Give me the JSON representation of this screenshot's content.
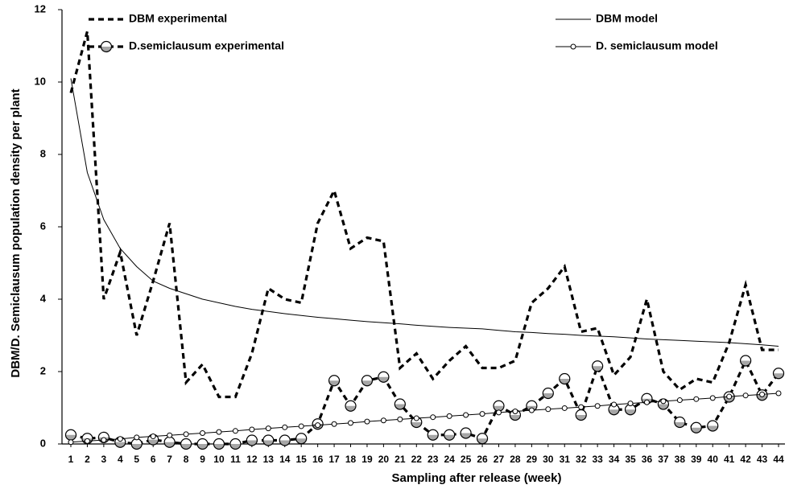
{
  "chart_data": {
    "type": "line",
    "x_label": "Sampling after release (week)",
    "y_label": "DBM/D. Semiclausum population density per plant",
    "categories": [
      1,
      2,
      3,
      4,
      5,
      6,
      7,
      8,
      9,
      10,
      11,
      12,
      13,
      14,
      15,
      16,
      17,
      18,
      19,
      20,
      21,
      22,
      23,
      24,
      25,
      26,
      27,
      28,
      29,
      30,
      31,
      32,
      33,
      34,
      35,
      36,
      37,
      38,
      39,
      40,
      41,
      42,
      43,
      44
    ],
    "ylim": [
      0,
      12
    ],
    "yticks": [
      0,
      2,
      4,
      6,
      8,
      10,
      12
    ],
    "series": [
      {
        "name": "DBM experimental",
        "color": "#000000",
        "line_style": "dashed",
        "marker": "none",
        "values": [
          9.7,
          11.4,
          4.0,
          5.3,
          3.0,
          4.5,
          6.1,
          1.7,
          2.2,
          1.3,
          1.3,
          2.5,
          4.3,
          4.0,
          3.9,
          6.1,
          7.0,
          5.4,
          5.7,
          5.6,
          2.1,
          2.5,
          1.8,
          2.3,
          2.7,
          2.1,
          2.1,
          2.3,
          3.9,
          4.3,
          4.9,
          3.1,
          3.2,
          1.9,
          2.4,
          4.0,
          2.0,
          1.5,
          1.8,
          1.7,
          2.8,
          4.4,
          2.6,
          2.6
        ]
      },
      {
        "name": "DBM model",
        "color": "#000000",
        "line_style": "solid",
        "marker": "none",
        "values": [
          10.1,
          7.5,
          6.2,
          5.4,
          4.9,
          4.5,
          4.3,
          4.15,
          4.0,
          3.9,
          3.8,
          3.72,
          3.66,
          3.6,
          3.55,
          3.5,
          3.46,
          3.42,
          3.38,
          3.35,
          3.32,
          3.28,
          3.25,
          3.22,
          3.2,
          3.18,
          3.14,
          3.1,
          3.08,
          3.05,
          3.03,
          3.0,
          2.98,
          2.96,
          2.93,
          2.9,
          2.88,
          2.86,
          2.84,
          2.82,
          2.8,
          2.77,
          2.74,
          2.7
        ]
      },
      {
        "name": "D.semiclausum experimental",
        "color": "#000000",
        "line_style": "dashed",
        "marker": "large-circle",
        "values": [
          0.25,
          0.15,
          0.18,
          0.05,
          0.0,
          0.12,
          0.05,
          0.0,
          0.0,
          0.0,
          0.0,
          0.1,
          0.1,
          0.1,
          0.15,
          0.55,
          1.75,
          1.05,
          1.75,
          1.85,
          1.1,
          0.6,
          0.25,
          0.25,
          0.3,
          0.15,
          1.05,
          0.8,
          1.05,
          1.4,
          1.8,
          0.8,
          2.15,
          0.95,
          0.95,
          1.25,
          1.1,
          0.6,
          0.45,
          0.5,
          1.3,
          2.3,
          1.35,
          1.95
        ]
      },
      {
        "name": "D. semiclausum model",
        "color": "#000000",
        "line_style": "solid",
        "marker": "small-circle",
        "values": [
          0.05,
          0.08,
          0.11,
          0.14,
          0.18,
          0.21,
          0.24,
          0.27,
          0.3,
          0.33,
          0.36,
          0.4,
          0.43,
          0.46,
          0.49,
          0.52,
          0.55,
          0.58,
          0.62,
          0.65,
          0.68,
          0.71,
          0.74,
          0.77,
          0.8,
          0.83,
          0.87,
          0.9,
          0.93,
          0.96,
          0.99,
          1.02,
          1.05,
          1.09,
          1.12,
          1.15,
          1.18,
          1.21,
          1.24,
          1.27,
          1.31,
          1.34,
          1.37,
          1.4
        ]
      }
    ]
  }
}
